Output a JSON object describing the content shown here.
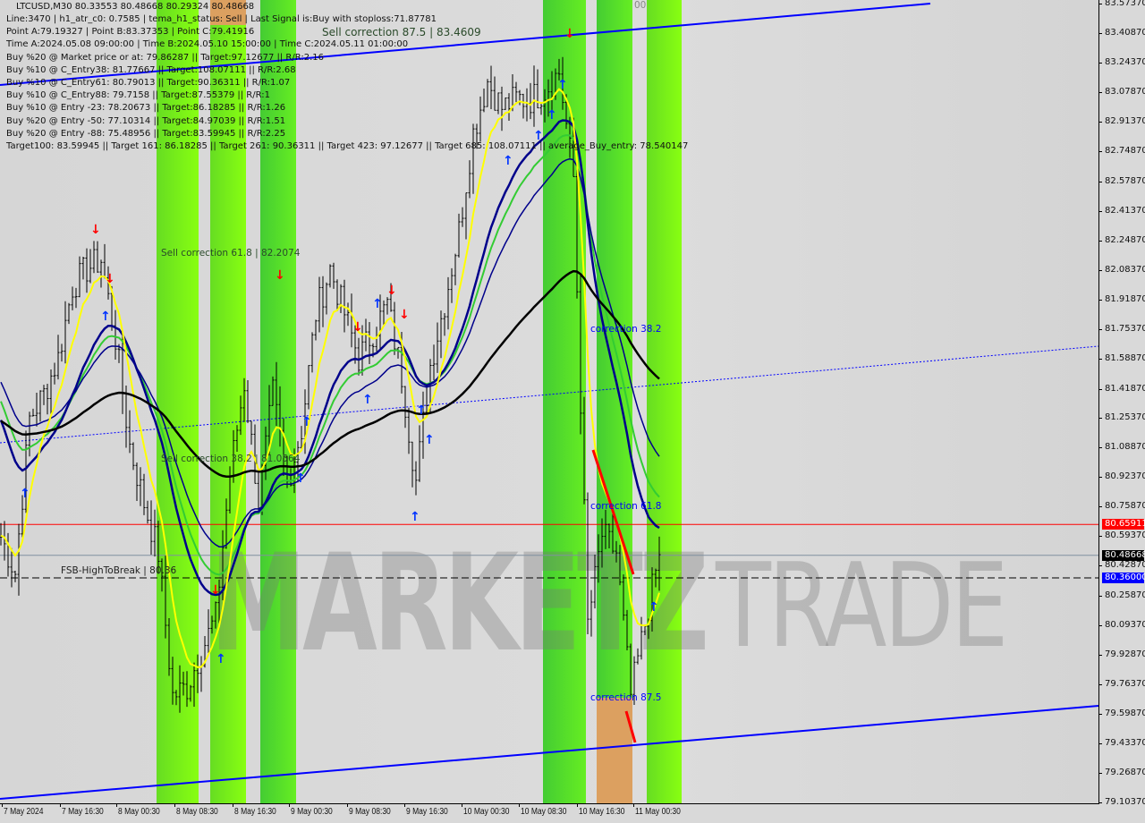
{
  "header": {
    "title": "LTCUSD,M30  80.33553 80.48668 80.29324 80.48668",
    "lines": [
      "Line:3470 | h1_atr_c0: 0.7585 | tema_h1_status: Sell | Last Signal is:Buy with stoploss:71.87781",
      "Point A:79.19327 | Point B:83.37353 | Point C:79.41916",
      "Time A:2024.05.08 09:00:00 | Time B:2024.05.10 15:00:00 | Time C:2024.05.11 01:00:00",
      "Buy %20 @ Market price or at: 79.86287 || Target:97.12677 || R/R:2.16",
      "Buy %10 @ C_Entry38: 81.77667 || Target:108.07111 || R/R:2.68",
      "Buy %10 @ C_Entry61: 80.79013 || Target:90.36311 || R/R:1.07",
      "Buy %10 @ C_Entry88: 79.7158 || Target:87.55379 || R/R:1",
      "Buy %10 @ Entry -23: 78.20673 || Target:86.18285 || R/R:1.26",
      "Buy %20 @ Entry -50: 77.10314 || Target:84.97039 || R/R:1.51",
      "Buy %20 @ Entry -88: 75.48956 || Target:83.59945 || R/R:2.25",
      "Target100: 83.59945 || Target 161: 86.18285 || Target 261: 90.36311 || Target 423: 97.12677 || Target 685: 108.07111 || average_Buy_entry: 78.540147"
    ]
  },
  "annotations": {
    "sell_corr_875": "Sell correction 87.5 | 83.4609",
    "sell_corr_618": "Sell correction 61.8 | 82.2074",
    "sell_corr_382": "Sell correction 38.2 | 81.0564",
    "fsb": "FSB-HighToBreak | 80.36",
    "corr_382": "correction 38.2",
    "corr_618": "correction 61.8",
    "corr_875": "correction 87.5",
    "top_marker": "00"
  },
  "watermark": {
    "part1": "MARKETZ",
    "part2": "TRADE"
  },
  "colors": {
    "bg": "#d9d9d9",
    "red_level": "#ff0000",
    "blue_level": "#0000ff",
    "current": "#000000",
    "channel": "#0000ff",
    "ma_yellow": "#ffff00",
    "ma_blue": "#00008b",
    "ma_green": "#33cc33",
    "ma_black": "#000000"
  },
  "chart_data": {
    "type": "candlestick",
    "symbol": "LTCUSD",
    "timeframe": "M30",
    "ylim": [
      79.1037,
      83.5737
    ],
    "y_ticks": [
      "83.57370",
      "83.40870",
      "83.24370",
      "83.07870",
      "82.91370",
      "82.74870",
      "82.57870",
      "82.41370",
      "82.24870",
      "82.08370",
      "81.91870",
      "81.75370",
      "81.58870",
      "81.41870",
      "81.25370",
      "81.08870",
      "80.92370",
      "80.75870",
      "80.59370",
      "80.42870",
      "80.25870",
      "80.09370",
      "79.92870",
      "79.76370",
      "79.59870",
      "79.43370",
      "79.26870",
      "79.10370"
    ],
    "x_ticks": [
      "7 May 2024",
      "7 May 16:30",
      "8 May 00:30",
      "8 May 08:30",
      "8 May 16:30",
      "9 May 00:30",
      "9 May 08:30",
      "9 May 16:30",
      "10 May 00:30",
      "10 May 08:30",
      "10 May 16:30",
      "11 May 00:30"
    ],
    "levels": [
      {
        "label": "80.65911",
        "price": 80.65911,
        "color": "#ff0000"
      },
      {
        "label": "80.48668",
        "price": 80.48668,
        "color": "#000000"
      },
      {
        "label": "80.36000",
        "price": 80.36,
        "color": "#0000ff"
      }
    ],
    "approx_close_every_2h": {
      "times": [
        "05-07 08:00",
        "05-07 10:00",
        "05-07 12:00",
        "05-07 14:00",
        "05-07 16:00",
        "05-07 18:00",
        "05-07 20:00",
        "05-07 22:00",
        "05-08 00:00",
        "05-08 02:00",
        "05-08 04:00",
        "05-08 06:00",
        "05-08 08:00",
        "05-08 10:00",
        "05-08 12:00",
        "05-08 14:00",
        "05-08 16:00",
        "05-08 18:00",
        "05-08 20:00",
        "05-08 22:00",
        "05-09 00:00",
        "05-09 02:00",
        "05-09 04:00",
        "05-09 06:00",
        "05-09 08:00",
        "05-09 10:00",
        "05-09 12:00",
        "05-09 14:00",
        "05-09 16:00",
        "05-09 18:00",
        "05-09 20:00",
        "05-09 22:00",
        "05-10 00:00",
        "05-10 02:00",
        "05-10 04:00",
        "05-10 06:00",
        "05-10 08:00",
        "05-10 10:00",
        "05-10 12:00",
        "05-10 14:00",
        "05-10 16:00",
        "05-10 18:00",
        "05-10 20:00",
        "05-10 22:00",
        "05-11 00:00",
        "05-11 02:00",
        "05-11 04:00"
      ],
      "close": [
        80.59,
        80.39,
        81.25,
        81.39,
        81.59,
        81.99,
        82.09,
        82.14,
        81.7,
        81.1,
        80.78,
        80.5,
        79.7,
        79.75,
        79.95,
        80.14,
        80.94,
        81.45,
        80.79,
        81.39,
        80.89,
        81.19,
        81.84,
        82.09,
        81.84,
        81.59,
        81.74,
        81.89,
        81.49,
        80.9,
        81.55,
        81.9,
        82.3,
        82.85,
        83.14,
        82.99,
        83.04,
        83.04,
        83.09,
        83.19,
        82.6,
        80.1,
        80.6,
        80.5,
        79.7,
        80.1,
        80.49
      ]
    }
  }
}
